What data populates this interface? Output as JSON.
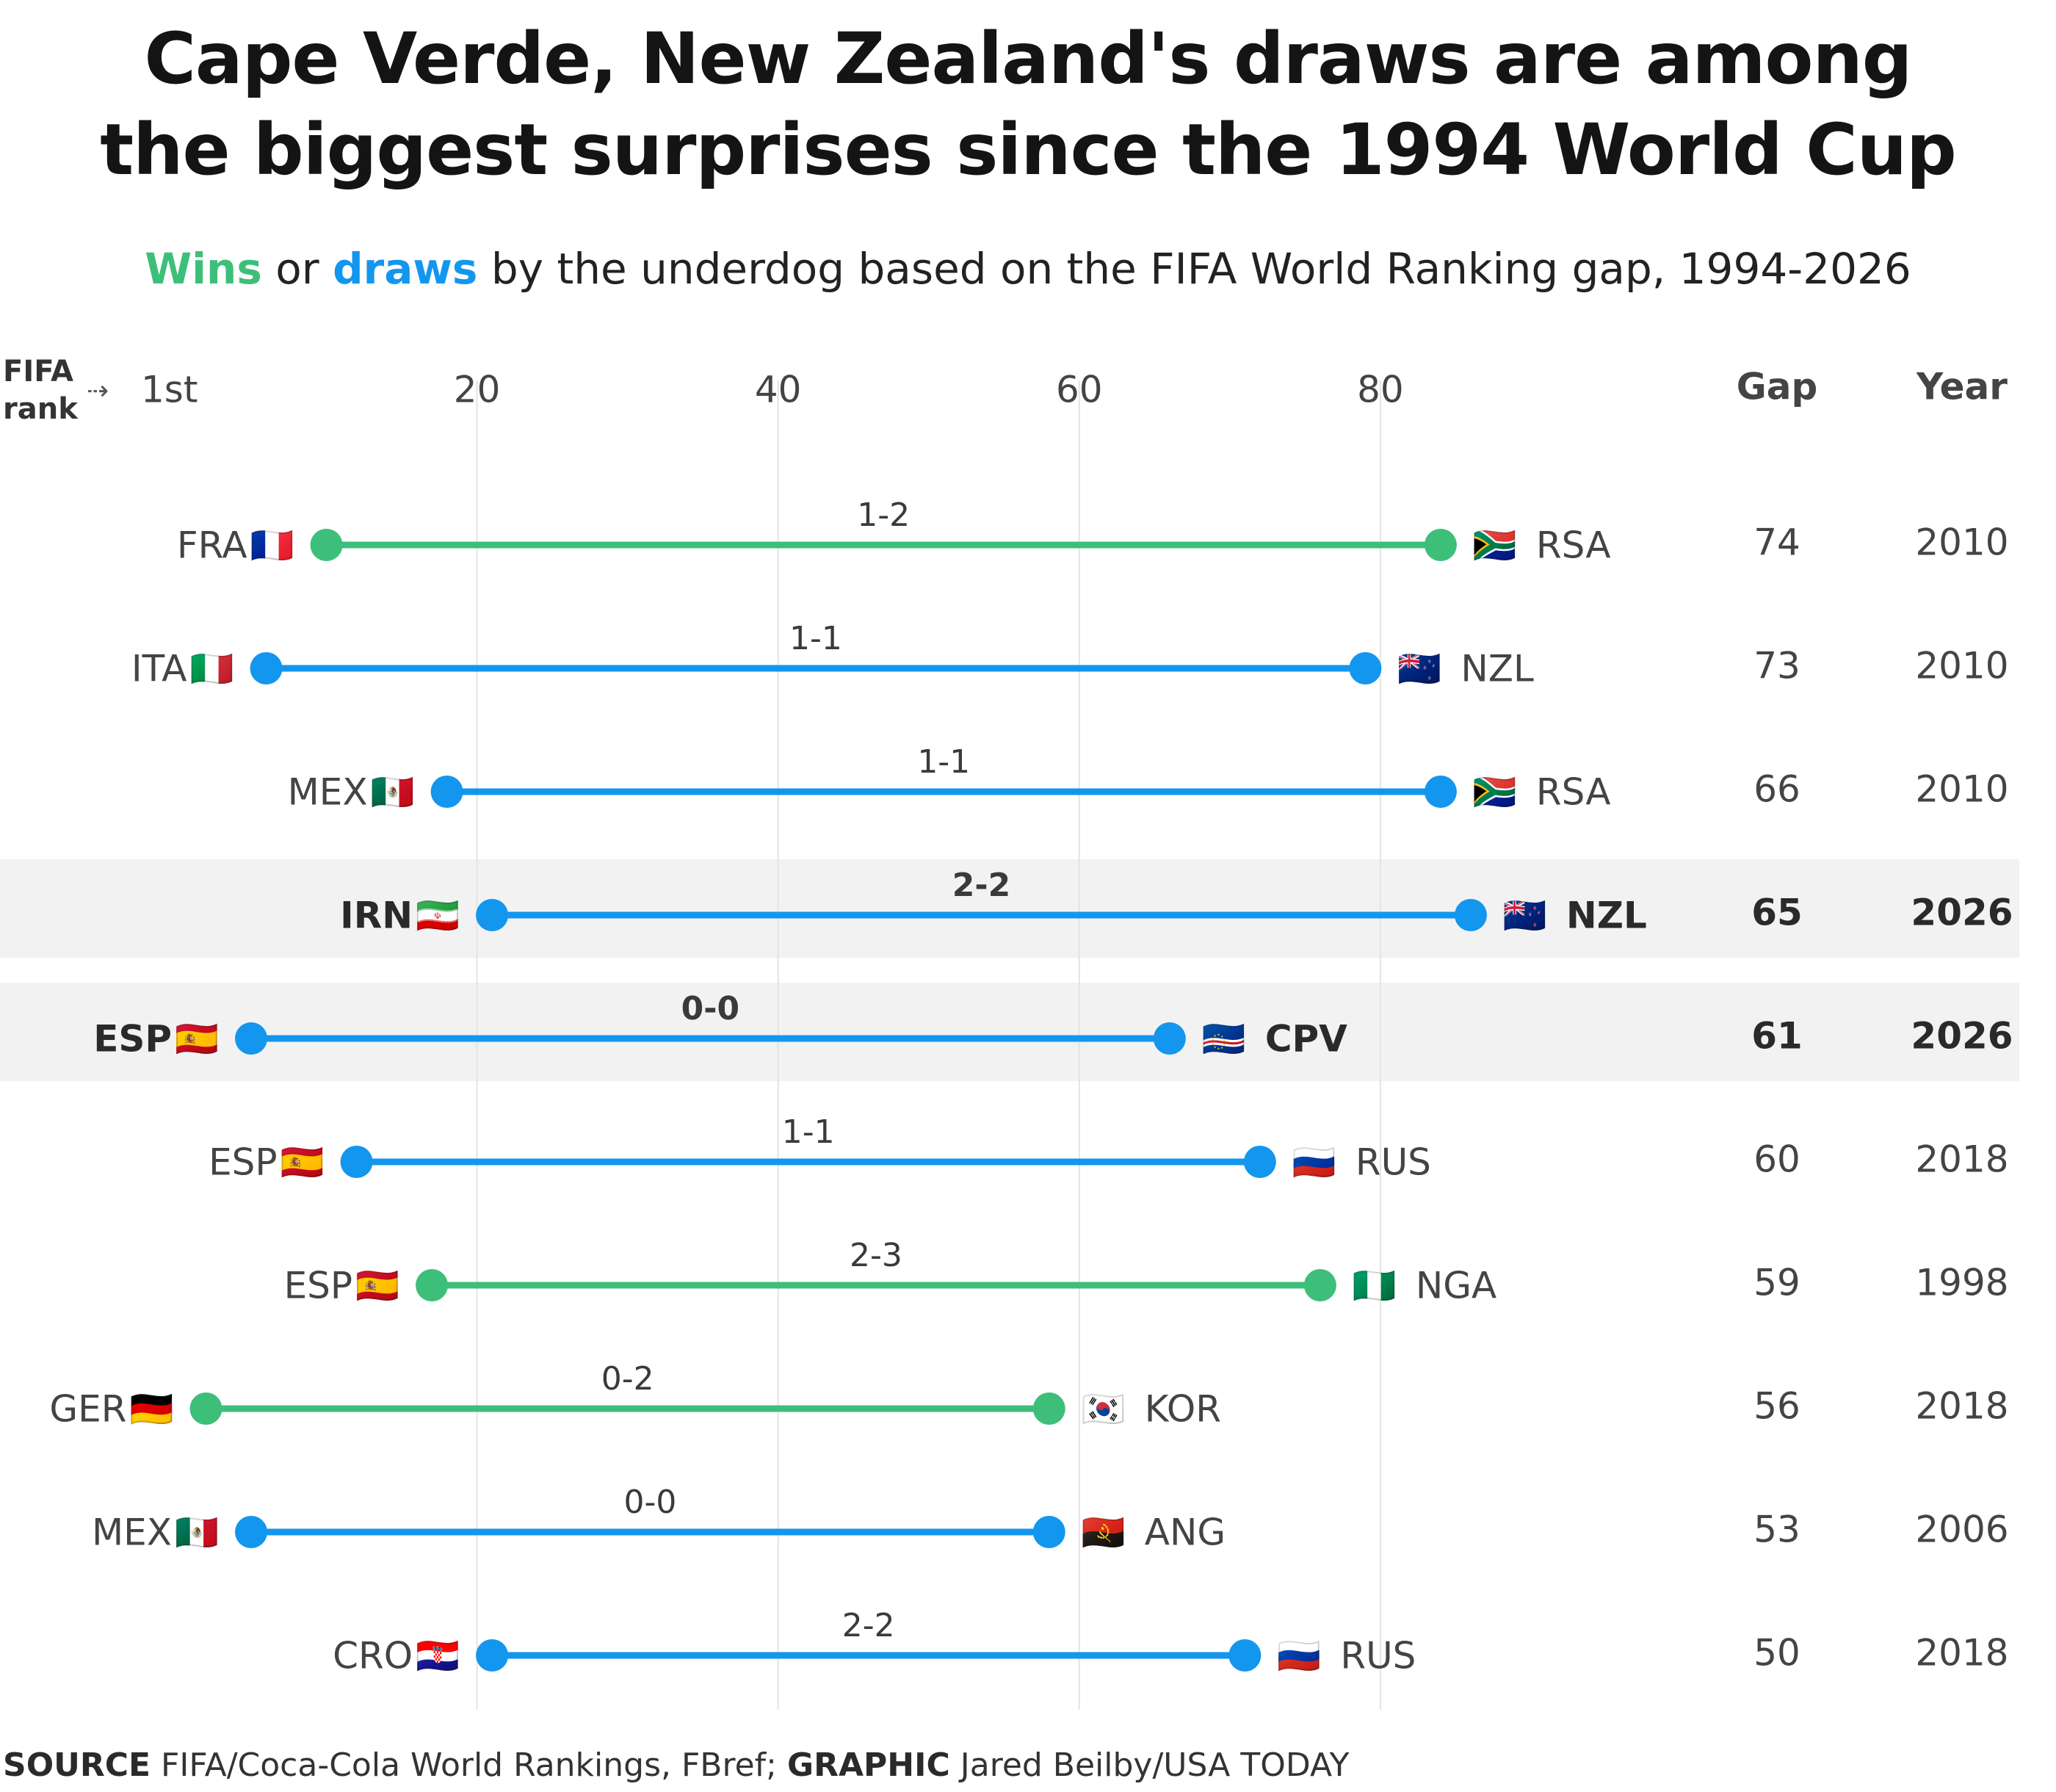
{
  "title_line1": "Cape Verde, New Zealand's draws are among",
  "title_line2": "the biggest surprises since the 1994 World Cup",
  "subtitle": {
    "wins": "Wins",
    "or": " or ",
    "draws": "draws",
    "rest": " by the underdog based on the FIFA World Ranking gap, 1994-2026"
  },
  "axis": {
    "label_line1": "FIFA",
    "label_line2": "rank",
    "arrow": "⇢",
    "first_tick": "1st",
    "ticks": [
      20,
      40,
      60,
      80
    ],
    "range": [
      1,
      100
    ]
  },
  "columns": {
    "gap": "Gap",
    "year": "Year"
  },
  "colors": {
    "win": "#3dbf7a",
    "draw": "#1396ee",
    "highlight_bg": "#f2f2f2",
    "grid": "#e4e4e4"
  },
  "chart_data": {
    "type": "dumbbell",
    "x_label": "FIFA rank",
    "xlim": [
      1,
      100
    ],
    "matches": [
      {
        "favorite": "FRA",
        "favorite_flag": "🇫🇷",
        "favorite_rank": 10,
        "underdog": "RSA",
        "underdog_flag": "🇿🇦",
        "underdog_rank": 84,
        "score": "1-2",
        "result": "win",
        "gap": 74,
        "year": 2010,
        "highlight": false
      },
      {
        "favorite": "ITA",
        "favorite_flag": "🇮🇹",
        "favorite_rank": 6,
        "underdog": "NZL",
        "underdog_flag": "🇳🇿",
        "underdog_rank": 79,
        "score": "1-1",
        "result": "draw",
        "gap": 73,
        "year": 2010,
        "highlight": false
      },
      {
        "favorite": "MEX",
        "favorite_flag": "🇲🇽",
        "favorite_rank": 18,
        "underdog": "RSA",
        "underdog_flag": "🇿🇦",
        "underdog_rank": 84,
        "score": "1-1",
        "result": "draw",
        "gap": 66,
        "year": 2010,
        "highlight": false
      },
      {
        "favorite": "IRN",
        "favorite_flag": "🇮🇷",
        "favorite_rank": 21,
        "underdog": "NZL",
        "underdog_flag": "🇳🇿",
        "underdog_rank": 86,
        "score": "2-2",
        "result": "draw",
        "gap": 65,
        "year": 2026,
        "highlight": true
      },
      {
        "favorite": "ESP",
        "favorite_flag": "🇪🇸",
        "favorite_rank": 5,
        "underdog": "CPV",
        "underdog_flag": "🇨🇻",
        "underdog_rank": 66,
        "score": "0-0",
        "result": "draw",
        "gap": 61,
        "year": 2026,
        "highlight": true
      },
      {
        "favorite": "ESP",
        "favorite_flag": "🇪🇸",
        "favorite_rank": 12,
        "underdog": "RUS",
        "underdog_flag": "🇷🇺",
        "underdog_rank": 72,
        "score": "1-1",
        "result": "draw",
        "gap": 60,
        "year": 2018,
        "highlight": false
      },
      {
        "favorite": "ESP",
        "favorite_flag": "🇪🇸",
        "favorite_rank": 17,
        "underdog": "NGA",
        "underdog_flag": "🇳🇬",
        "underdog_rank": 76,
        "score": "2-3",
        "result": "win",
        "gap": 59,
        "year": 1998,
        "highlight": false
      },
      {
        "favorite": "GER",
        "favorite_flag": "🇩🇪",
        "favorite_rank": 2,
        "underdog": "KOR",
        "underdog_flag": "🇰🇷",
        "underdog_rank": 58,
        "score": "0-2",
        "result": "win",
        "gap": 56,
        "year": 2018,
        "highlight": false
      },
      {
        "favorite": "MEX",
        "favorite_flag": "🇲🇽",
        "favorite_rank": 5,
        "underdog": "ANG",
        "underdog_flag": "🇦🇴",
        "underdog_rank": 58,
        "score": "0-0",
        "result": "draw",
        "gap": 53,
        "year": 2006,
        "highlight": false
      },
      {
        "favorite": "CRO",
        "favorite_flag": "🇭🇷",
        "favorite_rank": 21,
        "underdog": "RUS",
        "underdog_flag": "🇷🇺",
        "underdog_rank": 71,
        "score": "2-2",
        "result": "draw",
        "gap": 50,
        "year": 2018,
        "highlight": false
      }
    ]
  },
  "footer": {
    "source_label": "SOURCE",
    "source_text": " FIFA/Coca-Cola World Rankings, FBref; ",
    "graphic_label": "GRAPHIC",
    "graphic_text": " Jared Beilby/USA TODAY"
  }
}
